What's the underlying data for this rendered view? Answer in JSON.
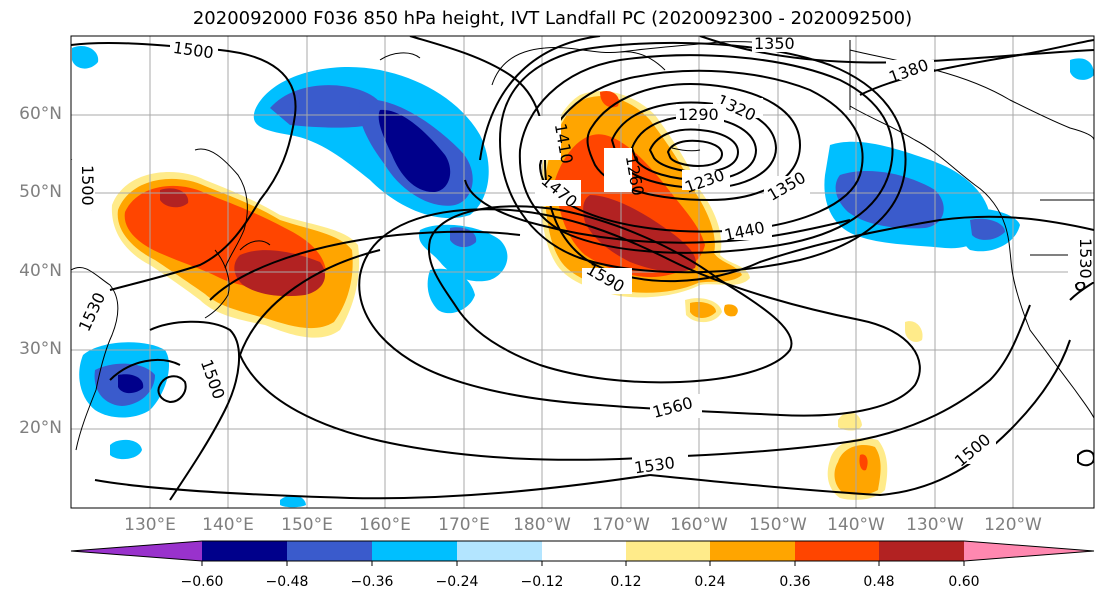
{
  "title": "2020092000 F036 850 hPa height, IVT Landfall PC (2020092300 - 2020092500)",
  "lat_labels": [
    "60°N",
    "50°N",
    "40°N",
    "30°N",
    "20°N"
  ],
  "lon_labels": [
    "130°E",
    "140°E",
    "150°E",
    "160°E",
    "170°E",
    "180°W",
    "170°W",
    "160°W",
    "150°W",
    "140°W",
    "130°W",
    "120°W"
  ],
  "contour_labels": [
    "1500",
    "1350",
    "1380",
    "1320",
    "1290",
    "1260",
    "1230",
    "1350",
    "1440",
    "1410",
    "1470",
    "1590",
    "1500",
    "1530",
    "1560",
    "1530",
    "1500",
    "1530",
    "1500"
  ],
  "colorbar": {
    "colors": [
      "#9932cc",
      "#00008b",
      "#3a5bcc",
      "#00bfff",
      "#b3e5ff",
      "#ffffff",
      "#ffeb8a",
      "#ffa500",
      "#ff4500",
      "#b22222",
      "#ff88b0"
    ],
    "tick_labels": [
      "−0.60",
      "−0.48",
      "−0.36",
      "−0.24",
      "−0.12",
      "0.12",
      "0.24",
      "0.36",
      "0.48",
      "0.60"
    ]
  }
}
